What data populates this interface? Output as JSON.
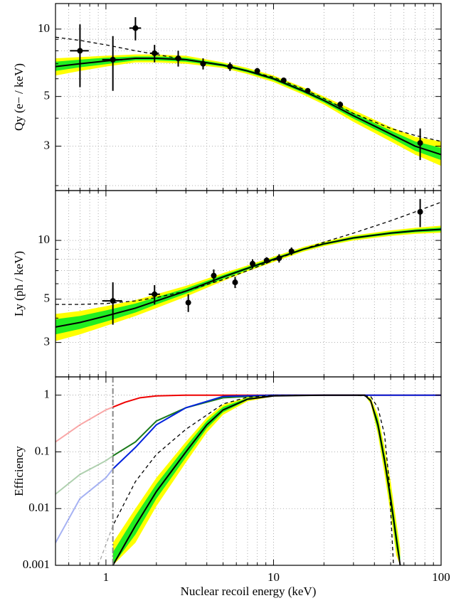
{
  "chart_data": [
    {
      "type": "line",
      "ylabel": "Qy (e− / keV)",
      "xscale": "log",
      "yscale": "log",
      "xlim": [
        0.5,
        100
      ],
      "xticks": [
        1,
        10,
        100
      ],
      "xminorticks": [
        0.5,
        0.6,
        0.7,
        0.8,
        0.9,
        2,
        3,
        4,
        5,
        6,
        7,
        8,
        9,
        20,
        30,
        40,
        50,
        60,
        70,
        80,
        90
      ],
      "ylim": [
        1.9,
        13
      ],
      "yticks": [
        3,
        5,
        10
      ],
      "yminorticks": [
        2,
        4,
        6,
        7,
        8,
        9
      ],
      "grid": true,
      "series": [
        {
          "kind": "band",
          "color": "#ffff00",
          "x": [
            0.5,
            0.7,
            1,
            1.5,
            2,
            3,
            5,
            7,
            10,
            15,
            20,
            30,
            50,
            70,
            100
          ],
          "upper": [
            7.4,
            7.5,
            7.6,
            7.7,
            7.7,
            7.6,
            7.1,
            6.7,
            6.2,
            5.5,
            5.0,
            4.35,
            3.65,
            3.3,
            3.15
          ],
          "lower": [
            6.2,
            6.5,
            6.8,
            7.1,
            7.1,
            7.0,
            6.7,
            6.3,
            5.8,
            5.1,
            4.6,
            3.85,
            3.15,
            2.75,
            2.45
          ]
        },
        {
          "kind": "band",
          "color": "#22ee22",
          "x": [
            0.5,
            0.7,
            1,
            1.5,
            2,
            3,
            5,
            7,
            10,
            15,
            20,
            30,
            50,
            70,
            100
          ],
          "upper": [
            7.15,
            7.3,
            7.45,
            7.55,
            7.55,
            7.45,
            7.0,
            6.6,
            6.1,
            5.4,
            4.9,
            4.22,
            3.52,
            3.15,
            2.95
          ],
          "lower": [
            6.5,
            6.75,
            6.97,
            7.25,
            7.25,
            7.15,
            6.8,
            6.4,
            5.9,
            5.2,
            4.7,
            3.98,
            3.28,
            2.86,
            2.6
          ]
        },
        {
          "kind": "line",
          "color": "#000000",
          "dash": false,
          "x": [
            0.5,
            0.7,
            1,
            1.5,
            2,
            3,
            5,
            7,
            10,
            15,
            20,
            30,
            50,
            70,
            100
          ],
          "values": [
            6.8,
            7.0,
            7.2,
            7.4,
            7.4,
            7.3,
            6.9,
            6.5,
            6.0,
            5.3,
            4.8,
            4.1,
            3.4,
            3.0,
            2.75
          ]
        },
        {
          "kind": "line",
          "color": "#000000",
          "dash": true,
          "x": [
            0.5,
            0.7,
            1,
            1.5,
            2,
            3,
            5,
            7,
            10,
            15,
            20,
            30,
            50,
            70,
            100
          ],
          "values": [
            9.2,
            8.9,
            8.5,
            8.0,
            7.7,
            7.3,
            6.9,
            6.5,
            6.1,
            5.4,
            4.9,
            4.2,
            3.6,
            3.35,
            3.15
          ]
        },
        {
          "kind": "points",
          "color": "#000000",
          "x": [
            0.7,
            1.1,
            1.5,
            1.95,
            2.7,
            3.8,
            5.5,
            8,
            11.5,
            16,
            25,
            75
          ],
          "values": [
            8,
            7.3,
            10.1,
            7.8,
            7.4,
            7.0,
            6.8,
            6.5,
            5.9,
            5.3,
            4.6,
            3.1
          ],
          "yerr": [
            2.5,
            2,
            1.2,
            0.7,
            0.6,
            0.4,
            0.3,
            0.2,
            0.15,
            0.15,
            0.15,
            0.5
          ],
          "xerr": [
            0.09,
            0.15,
            0.12,
            0.12,
            0.12,
            0.15,
            0.2,
            0.2,
            0,
            0,
            0,
            0
          ]
        }
      ]
    },
    {
      "type": "line",
      "ylabel": "Ly (ph / keV)",
      "xscale": "log",
      "yscale": "log",
      "xlim": [
        0.5,
        100
      ],
      "xticks": [
        1,
        10,
        100
      ],
      "xminorticks": [
        0.5,
        0.6,
        0.7,
        0.8,
        0.9,
        2,
        3,
        4,
        5,
        6,
        7,
        8,
        9,
        20,
        30,
        40,
        50,
        60,
        70,
        80,
        90
      ],
      "ylim": [
        2.0,
        18
      ],
      "yticks": [
        3,
        5,
        10
      ],
      "yminorticks": [
        4,
        6,
        7,
        8,
        9
      ],
      "grid": true,
      "series": [
        {
          "kind": "band",
          "color": "#ffff00",
          "x": [
            0.5,
            0.7,
            1,
            1.5,
            2,
            3,
            5,
            7,
            10,
            15,
            20,
            30,
            50,
            70,
            100
          ],
          "upper": [
            4.2,
            4.35,
            4.6,
            4.95,
            5.3,
            5.85,
            6.8,
            7.45,
            8.25,
            9.25,
            9.85,
            10.6,
            11.25,
            11.6,
            11.9
          ],
          "lower": [
            3.05,
            3.3,
            3.65,
            4.1,
            4.5,
            5.15,
            6.2,
            6.95,
            7.75,
            8.75,
            9.35,
            10.0,
            10.55,
            10.8,
            10.95
          ]
        },
        {
          "kind": "band",
          "color": "#22ee22",
          "x": [
            0.5,
            0.7,
            1,
            1.5,
            2,
            3,
            5,
            7,
            10,
            15,
            20,
            30,
            50,
            70,
            100
          ],
          "upper": [
            3.95,
            4.1,
            4.38,
            4.75,
            5.12,
            5.68,
            6.65,
            7.33,
            8.12,
            9.12,
            9.72,
            10.45,
            11.07,
            11.4,
            11.65
          ],
          "lower": [
            3.3,
            3.52,
            3.84,
            4.27,
            4.7,
            5.33,
            6.35,
            7.07,
            7.88,
            8.88,
            9.48,
            10.15,
            10.72,
            11.0,
            11.15
          ]
        },
        {
          "kind": "line",
          "color": "#000000",
          "dash": false,
          "x": [
            0.5,
            0.7,
            1,
            1.5,
            2,
            3,
            5,
            7,
            10,
            15,
            20,
            30,
            50,
            70,
            100
          ],
          "values": [
            3.6,
            3.8,
            4.1,
            4.5,
            4.9,
            5.5,
            6.5,
            7.2,
            8.0,
            9.0,
            9.6,
            10.3,
            10.9,
            11.2,
            11.4
          ]
        },
        {
          "kind": "line",
          "color": "#000000",
          "dash": true,
          "x": [
            0.5,
            0.7,
            1,
            1.5,
            2,
            3,
            5,
            7,
            10,
            15,
            20,
            30,
            50,
            70,
            100
          ],
          "values": [
            4.7,
            4.7,
            4.75,
            4.9,
            5.1,
            5.5,
            6.3,
            7.0,
            7.9,
            9.0,
            9.8,
            10.9,
            12.6,
            14.0,
            15.7
          ]
        },
        {
          "kind": "points",
          "color": "#000000",
          "x": [
            1.1,
            1.95,
            3.1,
            4.4,
            5.9,
            7.5,
            9.1,
            10.8,
            12.8,
            75
          ],
          "values": [
            4.9,
            5.3,
            4.8,
            6.6,
            6.1,
            7.6,
            7.9,
            8.1,
            8.8,
            14
          ],
          "yerr": [
            1.2,
            0.6,
            0.5,
            0.5,
            0.4,
            0.4,
            0.3,
            0.4,
            0.4,
            2.3
          ],
          "xerr": [
            0.15,
            0.15,
            0.1,
            0.1,
            0.1,
            0.1,
            0.1,
            0.1,
            0.1,
            0
          ]
        }
      ]
    },
    {
      "type": "line",
      "ylabel": "Efficiency",
      "xlabel": "Nuclear recoil energy (keV)",
      "xscale": "log",
      "yscale": "log",
      "xlim": [
        0.5,
        100
      ],
      "xticks": [
        1,
        10,
        100
      ],
      "xminorticks": [
        0.5,
        0.6,
        0.7,
        0.8,
        0.9,
        2,
        3,
        4,
        5,
        6,
        7,
        8,
        9,
        20,
        30,
        40,
        50,
        60,
        70,
        80,
        90
      ],
      "ylim": [
        0.001,
        2.1
      ],
      "yticks": [
        0.001,
        0.01,
        0.1,
        1
      ],
      "yminorticks": [],
      "grid": true,
      "threshold": 1.1,
      "threshold_color": "#888888",
      "series": [
        {
          "kind": "line",
          "color": "#ee0000",
          "dash": false,
          "fade": true,
          "x": [
            0.5,
            0.7,
            1,
            1.3,
            1.6,
            2,
            3,
            5,
            10,
            100
          ],
          "values": [
            0.15,
            0.3,
            0.55,
            0.75,
            0.9,
            0.97,
            1,
            1,
            1,
            1
          ]
        },
        {
          "kind": "line",
          "color": "#1a7a1a",
          "dash": false,
          "fade": true,
          "x": [
            0.5,
            0.7,
            1,
            1.1,
            1.5,
            2,
            3,
            5,
            10
          ],
          "values": [
            0.018,
            0.04,
            0.07,
            0.085,
            0.15,
            0.35,
            0.6,
            0.9,
            1
          ]
        },
        {
          "kind": "line",
          "color": "#0022dd",
          "dash": false,
          "fade": true,
          "x": [
            0.5,
            0.7,
            1,
            1.1,
            1.5,
            2,
            3,
            5,
            10,
            100
          ],
          "values": [
            0.0025,
            0.015,
            0.035,
            0.05,
            0.12,
            0.3,
            0.6,
            0.95,
            1,
            1
          ]
        },
        {
          "kind": "band",
          "color": "#ffff00",
          "x": [
            1.1,
            1.5,
            2,
            3,
            4,
            5,
            7,
            10,
            20,
            35,
            38,
            42,
            46,
            50,
            54,
            57
          ],
          "upper": [
            0.0025,
            0.01,
            0.035,
            0.15,
            0.4,
            0.68,
            0.92,
            0.99,
            1,
            1,
            0.9,
            0.45,
            0.12,
            0.03,
            0.006,
            0.002
          ],
          "lower": [
            0.001,
            0.0025,
            0.011,
            0.065,
            0.22,
            0.45,
            0.78,
            0.95,
            1,
            1,
            0.7,
            0.2,
            0.04,
            0.008,
            0.0015,
            0.001
          ]
        },
        {
          "kind": "band",
          "color": "#22ee22",
          "x": [
            1.1,
            1.5,
            2,
            3,
            4,
            5,
            7,
            10,
            20,
            35,
            38,
            42,
            46,
            50,
            54,
            57
          ],
          "upper": [
            0.0017,
            0.0075,
            0.027,
            0.125,
            0.35,
            0.62,
            0.89,
            0.98,
            1,
            1,
            0.85,
            0.37,
            0.09,
            0.02,
            0.0042,
            0.0014
          ],
          "lower": [
            0.001,
            0.0035,
            0.015,
            0.08,
            0.26,
            0.5,
            0.82,
            0.96,
            1,
            1,
            0.75,
            0.24,
            0.055,
            0.011,
            0.0021,
            0.001
          ]
        },
        {
          "kind": "line",
          "color": "#000000",
          "dash": false,
          "x": [
            1.1,
            1.5,
            2,
            3,
            4,
            5,
            7,
            10,
            20,
            35,
            38,
            42,
            46,
            50,
            54,
            57
          ],
          "values": [
            0.001,
            0.005,
            0.02,
            0.1,
            0.3,
            0.55,
            0.85,
            0.97,
            1,
            1,
            0.8,
            0.3,
            0.07,
            0.015,
            0.003,
            0.001
          ]
        },
        {
          "kind": "line",
          "color": "#000000",
          "dash": true,
          "fade": true,
          "x": [
            0.9,
            1.1,
            1.5,
            2,
            3,
            5,
            7,
            10,
            30,
            38,
            42,
            46,
            49,
            51,
            52
          ],
          "values": [
            0.001,
            0.005,
            0.03,
            0.09,
            0.25,
            0.7,
            0.92,
            0.99,
            1,
            0.95,
            0.6,
            0.2,
            0.03,
            0.003,
            0.001
          ]
        }
      ]
    }
  ]
}
